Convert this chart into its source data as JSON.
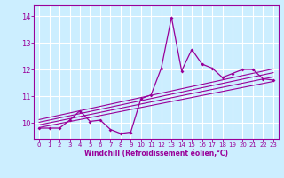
{
  "bg_color": "#cceeff",
  "grid_color": "#ffffff",
  "line_color": "#990099",
  "xlabel": "Windchill (Refroidissement éolien,°C)",
  "xlim": [
    -0.5,
    23.5
  ],
  "ylim": [
    9.4,
    14.4
  ],
  "yticks": [
    10,
    11,
    12,
    13,
    14
  ],
  "xticks": [
    0,
    1,
    2,
    3,
    4,
    5,
    6,
    7,
    8,
    9,
    10,
    11,
    12,
    13,
    14,
    15,
    16,
    17,
    18,
    19,
    20,
    21,
    22,
    23
  ],
  "main_x": [
    0,
    1,
    2,
    3,
    4,
    5,
    6,
    7,
    8,
    9,
    10,
    11,
    12,
    13,
    14,
    15,
    16,
    17,
    18,
    19,
    20,
    21,
    22,
    23
  ],
  "main_y": [
    9.8,
    9.8,
    9.8,
    10.1,
    10.45,
    10.05,
    10.1,
    9.75,
    9.6,
    9.65,
    10.9,
    11.05,
    12.05,
    13.95,
    11.95,
    12.75,
    12.2,
    12.05,
    11.7,
    11.85,
    12.0,
    12.0,
    11.65,
    11.6
  ],
  "reg_lines": [
    {
      "x": [
        0,
        23
      ],
      "y": [
        9.82,
        11.55
      ]
    },
    {
      "x": [
        0,
        23
      ],
      "y": [
        9.92,
        11.72
      ]
    },
    {
      "x": [
        0,
        23
      ],
      "y": [
        10.02,
        11.88
      ]
    },
    {
      "x": [
        0,
        23
      ],
      "y": [
        10.12,
        12.02
      ]
    }
  ]
}
